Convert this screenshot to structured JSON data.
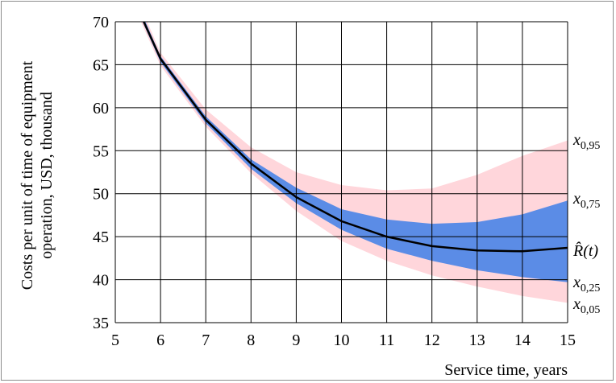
{
  "chart_data": {
    "type": "area",
    "title": "",
    "xlabel": "Service time, years",
    "ylabel_line1": "Costs per unit of time of equipment",
    "ylabel_line2": "operation, USD, thousand",
    "xlim": [
      5,
      15
    ],
    "ylim": [
      35,
      70
    ],
    "xticks": [
      5,
      6,
      7,
      8,
      9,
      10,
      11,
      12,
      13,
      14,
      15
    ],
    "yticks": [
      35,
      40,
      45,
      50,
      55,
      60,
      65,
      70
    ],
    "grid": true,
    "x": [
      5.5,
      6,
      7,
      8,
      9,
      10,
      11,
      12,
      13,
      14,
      15
    ],
    "series": [
      {
        "name": "x0,95",
        "label_main": "x",
        "label_sub": "0,95",
        "color": "#ffd6db",
        "values": [
          72.5,
          66.4,
          59.8,
          55.4,
          52.5,
          51.0,
          50.4,
          50.6,
          52.2,
          54.4,
          56.2
        ]
      },
      {
        "name": "x0,75",
        "label_main": "x",
        "label_sub": "0,75",
        "color": "#5b8ce6",
        "values": [
          72.0,
          66.0,
          59.0,
          54.0,
          50.7,
          48.2,
          47.0,
          46.5,
          46.7,
          47.6,
          49.2
        ]
      },
      {
        "name": "R(t)",
        "label": "R̂(t)",
        "color": "#000000",
        "values": [
          71.5,
          65.7,
          58.6,
          53.5,
          49.6,
          46.8,
          45.0,
          43.9,
          43.4,
          43.3,
          43.7
        ]
      },
      {
        "name": "x0,25",
        "label_main": "x",
        "label_sub": "0,25",
        "color": "#5b8ce6",
        "values": [
          71.2,
          65.3,
          58.2,
          52.9,
          48.9,
          45.8,
          43.6,
          42.2,
          41.1,
          40.3,
          39.7
        ]
      },
      {
        "name": "x0,05",
        "label_main": "x",
        "label_sub": "0,05",
        "color": "#ffd6db",
        "values": [
          70.8,
          64.9,
          57.8,
          52.4,
          48.0,
          44.5,
          42.2,
          40.5,
          39.2,
          38.1,
          37.3
        ]
      }
    ]
  }
}
